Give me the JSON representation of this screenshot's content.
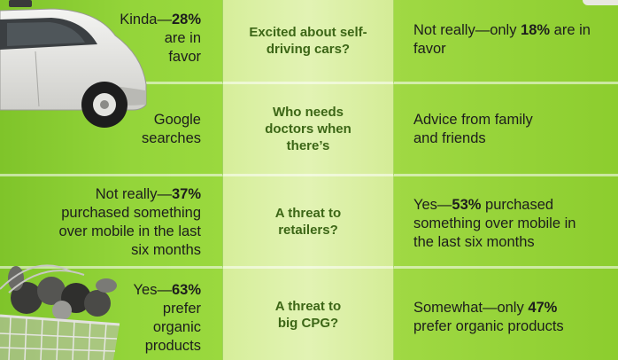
{
  "rows": [
    {
      "left": {
        "pre": "Kinda—",
        "bold": "28%",
        "post": " are in favor",
        "lines": [
          "Kinda—",
          "are in",
          "favor"
        ]
      },
      "middle": "Excited about self-driving cars?",
      "right": {
        "pre": "Not really—only ",
        "bold": "18%",
        "post": " are in favor"
      }
    },
    {
      "left": {
        "text": "Google searches"
      },
      "middle": "Who needs doctors when there’s",
      "right": {
        "text": "Advice from family and friends"
      }
    },
    {
      "left": {
        "pre": "Not really—",
        "bold": "37%",
        "post": " purchased something over mobile in the last six months"
      },
      "middle": "A threat to retailers?",
      "right": {
        "pre": "Yes—",
        "bold": "53%",
        "post": " purchased something over mobile in the last six months"
      }
    },
    {
      "left": {
        "pre": "Yes—",
        "bold": "63%",
        "post": " prefer organic products"
      },
      "middle": "A threat to big CPG?",
      "right": {
        "pre": "Somewhat—only ",
        "bold": "47%",
        "post": " prefer organic products"
      }
    }
  ],
  "icons": {
    "car": "self-driving-car-icon",
    "basket": "grocery-basket-icon"
  },
  "colors": {
    "green": "#8fd12e",
    "middle": "#e2f3b4",
    "question_text": "#3c6616"
  }
}
